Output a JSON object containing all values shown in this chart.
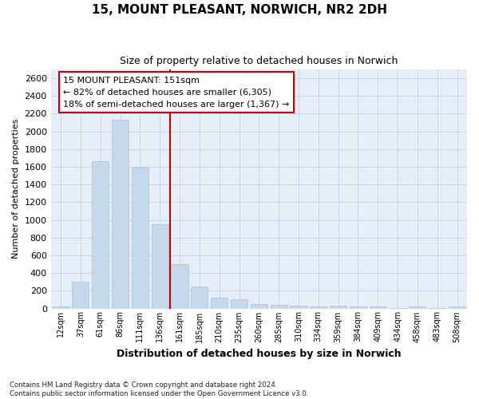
{
  "title": "15, MOUNT PLEASANT, NORWICH, NR2 2DH",
  "subtitle": "Size of property relative to detached houses in Norwich",
  "xlabel": "Distribution of detached houses by size in Norwich",
  "ylabel": "Number of detached properties",
  "footer_line1": "Contains HM Land Registry data © Crown copyright and database right 2024.",
  "footer_line2": "Contains public sector information licensed under the Open Government Licence v3.0.",
  "categories": [
    "12sqm",
    "37sqm",
    "61sqm",
    "86sqm",
    "111sqm",
    "136sqm",
    "161sqm",
    "185sqm",
    "210sqm",
    "235sqm",
    "260sqm",
    "285sqm",
    "310sqm",
    "334sqm",
    "359sqm",
    "384sqm",
    "409sqm",
    "434sqm",
    "458sqm",
    "483sqm",
    "508sqm"
  ],
  "values": [
    25,
    300,
    1660,
    2130,
    1590,
    955,
    500,
    250,
    120,
    100,
    50,
    45,
    35,
    20,
    30,
    20,
    20,
    5,
    20,
    5,
    25
  ],
  "bar_color": "#c6d9ec",
  "bar_edge_color": "#a8c4dc",
  "vline_x_idx": 6,
  "vline_color": "#cc0000",
  "annotation_text": "15 MOUNT PLEASANT: 151sqm\n← 82% of detached houses are smaller (6,305)\n18% of semi-detached houses are larger (1,367) →",
  "ylim": [
    0,
    2700
  ],
  "yticks": [
    0,
    200,
    400,
    600,
    800,
    1000,
    1200,
    1400,
    1600,
    1800,
    2000,
    2200,
    2400,
    2600
  ],
  "grid_color": "#c8d4e8",
  "bg_color": "#e8eef8"
}
